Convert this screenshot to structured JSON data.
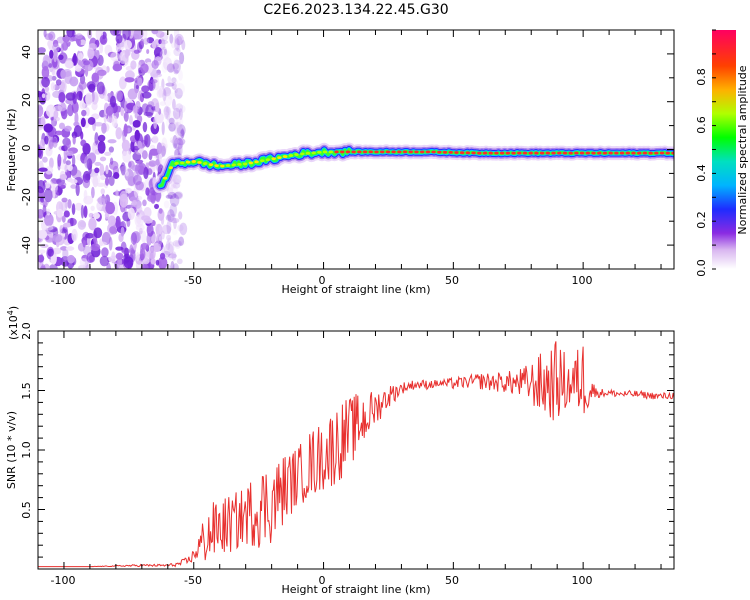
{
  "title": "C2E6.2023.134.22.45.G30",
  "chart_data": [
    {
      "type": "heatmap",
      "xlabel": "Height of straight line (km)",
      "ylabel": "Frequency (Hz)",
      "xlim": [
        -110,
        135
      ],
      "ylim": [
        -50,
        50
      ],
      "xticks": [
        "-100",
        "-50",
        "0",
        "50",
        "100"
      ],
      "yticks": [
        "-40",
        "-20",
        "0",
        "20",
        "40"
      ],
      "colorbar": {
        "label": "Normalized spectral amplitude",
        "range": [
          0,
          1
        ],
        "ticks": [
          "0.0",
          "0.2",
          "0.4",
          "0.6",
          "0.8"
        ]
      },
      "noise_region_x": [
        -110,
        -58
      ],
      "signal_trace": {
        "x": [
          -63,
          -58,
          -50,
          -40,
          -30,
          -20,
          -10,
          0,
          10,
          20,
          40,
          60,
          80,
          100,
          135
        ],
        "y": [
          -16,
          -6,
          -5,
          -7,
          -6,
          -4,
          -2,
          -1,
          -1,
          -1,
          -1,
          -1.5,
          -1.5,
          -1.5,
          -1.5
        ]
      }
    },
    {
      "type": "line",
      "xlabel": "Height of straight line (km)",
      "ylabel": "SNR (10 * v/v)",
      "multiplier": "(x10",
      "multiplier_exp": "4",
      "multiplier_close": ")",
      "xlim": [
        -110,
        135
      ],
      "ylim": [
        0,
        20000
      ],
      "xticks": [
        "-100",
        "-50",
        "0",
        "50",
        "100"
      ],
      "yticks": [
        "0.5",
        "1.0",
        "1.5",
        "2.0"
      ],
      "color": "#e8312f",
      "series": [
        {
          "x": [
            -110,
            -90,
            -70,
            -60,
            -56,
            -52,
            -50,
            -45,
            -40,
            -35,
            -30,
            -25,
            -20,
            -15,
            -10,
            -5,
            0,
            5,
            10,
            15,
            20,
            25,
            30,
            35,
            40,
            45,
            50,
            55,
            60,
            65,
            70,
            75,
            80,
            85,
            90,
            95,
            100,
            103,
            105,
            110,
            115,
            120,
            125,
            130,
            135
          ],
          "y": [
            200,
            200,
            300,
            300,
            400,
            700,
            1200,
            2800,
            3500,
            3800,
            4500,
            5200,
            5500,
            6800,
            7800,
            8800,
            9500,
            10500,
            11500,
            12500,
            13500,
            14500,
            15200,
            15500,
            15500,
            15600,
            15600,
            15700,
            15800,
            15700,
            15700,
            15600,
            15600,
            15500,
            15800,
            15500,
            16000,
            15200,
            14800,
            14800,
            14700,
            14700,
            14600,
            14500,
            14600
          ],
          "spread": [
            0,
            0,
            100,
            100,
            200,
            400,
            500,
            2500,
            2500,
            2500,
            2500,
            3500,
            3500,
            3000,
            2500,
            3000,
            3000,
            3500,
            3000,
            2500,
            1500,
            1000,
            500,
            400,
            400,
            300,
            500,
            500,
            700,
            800,
            900,
            1200,
            1800,
            3000,
            3500,
            2000,
            3500,
            1500,
            400,
            300,
            300,
            300,
            300,
            300,
            300
          ]
        }
      ]
    }
  ]
}
